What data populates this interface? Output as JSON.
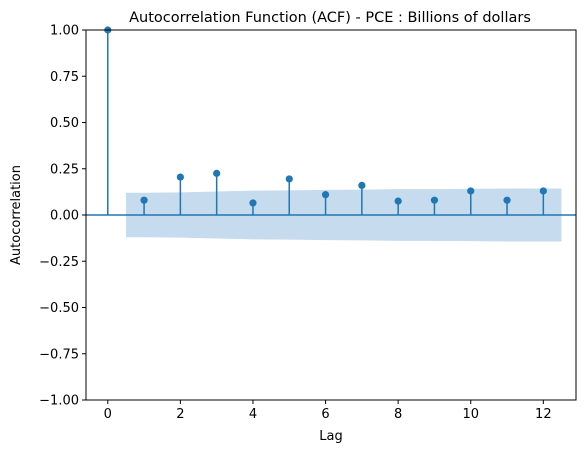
{
  "chart_data": {
    "type": "stem",
    "title": "Autocorrelation Function (ACF) - PCE : Billions of dollars",
    "xlabel": "Lag",
    "ylabel": "Autocorrelation",
    "xlim": [
      -0.6,
      12.9
    ],
    "ylim": [
      -1.0,
      1.0
    ],
    "xticks": [
      0,
      2,
      4,
      6,
      8,
      10,
      12
    ],
    "yticks": [
      -1.0,
      -0.75,
      -0.5,
      -0.25,
      0.0,
      0.25,
      0.5,
      0.75,
      1.0
    ],
    "ytick_labels": [
      "−1.00",
      "−0.75",
      "−0.50",
      "−0.25",
      "0.00",
      "0.25",
      "0.50",
      "0.75",
      "1.00"
    ],
    "xtick_labels": [
      "0",
      "2",
      "4",
      "6",
      "8",
      "10",
      "12"
    ],
    "lags": [
      0,
      1,
      2,
      3,
      4,
      5,
      6,
      7,
      8,
      9,
      10,
      11,
      12
    ],
    "values": [
      1.0,
      0.08,
      0.205,
      0.225,
      0.065,
      0.195,
      0.11,
      0.16,
      0.075,
      0.08,
      0.13,
      0.08,
      0.13
    ],
    "confidence_band": {
      "x": [
        0.5,
        1,
        2,
        3,
        4,
        5,
        6,
        7,
        8,
        9,
        10,
        11,
        12,
        12.5
      ],
      "upper": [
        0.12,
        0.12,
        0.122,
        0.127,
        0.132,
        0.133,
        0.136,
        0.137,
        0.14,
        0.14,
        0.141,
        0.143,
        0.143,
        0.143
      ],
      "lower": [
        -0.12,
        -0.12,
        -0.122,
        -0.127,
        -0.132,
        -0.133,
        -0.136,
        -0.137,
        -0.14,
        -0.14,
        -0.141,
        -0.143,
        -0.143,
        -0.143
      ]
    },
    "colors": {
      "stem": "#1f77b4",
      "band": "#c6dbed",
      "zero_line": "#1f77b4"
    }
  }
}
